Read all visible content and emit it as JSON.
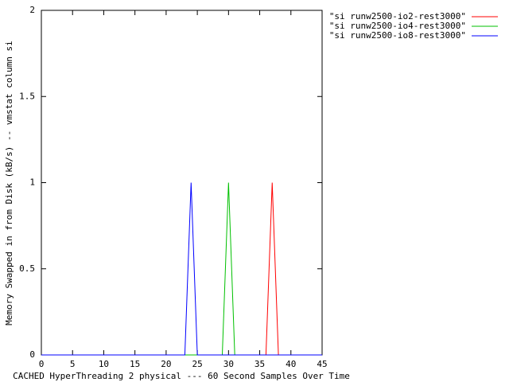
{
  "chart_data": {
    "type": "line",
    "xlabel": "CACHED HyperThreading 2 physical --- 60 Second Samples Over Time",
    "ylabel": "Memory Swapped in from Disk (kB/s) -- vmstat column si",
    "x": [
      0,
      1,
      2,
      3,
      4,
      5,
      6,
      7,
      8,
      9,
      10,
      11,
      12,
      13,
      14,
      15,
      16,
      17,
      18,
      19,
      20,
      21,
      22,
      23,
      24,
      25,
      26,
      27,
      28,
      29,
      30,
      31,
      32,
      33,
      34,
      35,
      36,
      37,
      38,
      39,
      40,
      41,
      42,
      43,
      44,
      45
    ],
    "series": [
      {
        "name": "\"si runw2500-io2-rest3000\"",
        "color": "#ff0000",
        "values": [
          0,
          0,
          0,
          0,
          0,
          0,
          0,
          0,
          0,
          0,
          0,
          0,
          0,
          0,
          0,
          0,
          0,
          0,
          0,
          0,
          0,
          0,
          0,
          0,
          0,
          0,
          0,
          0,
          0,
          0,
          0,
          0,
          0,
          0,
          0,
          0,
          0,
          1,
          0,
          0,
          0,
          0,
          0,
          0,
          0,
          0
        ]
      },
      {
        "name": "\"si runw2500-io4-rest3000\"",
        "color": "#00c000",
        "values": [
          0,
          0,
          0,
          0,
          0,
          0,
          0,
          0,
          0,
          0,
          0,
          0,
          0,
          0,
          0,
          0,
          0,
          0,
          0,
          0,
          0,
          0,
          0,
          0,
          0,
          0,
          0,
          0,
          0,
          0,
          1,
          0,
          0,
          0,
          0,
          0,
          0,
          0,
          0,
          0,
          0,
          0,
          0,
          0,
          0,
          0
        ]
      },
      {
        "name": "\"si runw2500-io8-rest3000\"",
        "color": "#0000ff",
        "values": [
          0,
          0,
          0,
          0,
          0,
          0,
          0,
          0,
          0,
          0,
          0,
          0,
          0,
          0,
          0,
          0,
          0,
          0,
          0,
          0,
          0,
          0,
          0,
          0,
          1,
          0,
          0,
          0,
          0,
          0,
          0,
          0,
          0,
          0,
          0,
          0,
          0,
          0,
          0,
          0,
          0,
          0,
          0,
          0,
          0,
          0
        ]
      }
    ],
    "xlim": [
      0,
      45
    ],
    "xticks": [
      0,
      5,
      10,
      15,
      20,
      25,
      30,
      35,
      40,
      45
    ],
    "ylim": [
      0,
      2
    ],
    "yticks": [
      0,
      0.5,
      1,
      1.5,
      2
    ],
    "legend": "outside-top-right"
  }
}
